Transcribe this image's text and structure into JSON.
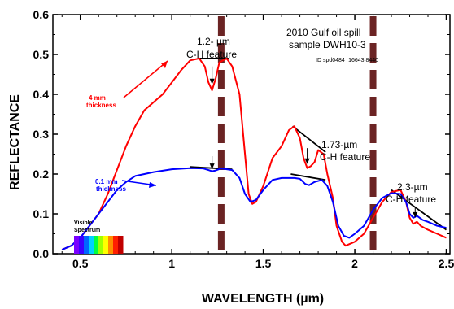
{
  "chart_data": {
    "type": "line",
    "title": "",
    "xlabel": "WAVELENGTH (µm)",
    "ylabel": "REFLECTANCE",
    "xlim": [
      0.35,
      2.52
    ],
    "ylim": [
      0,
      0.6
    ],
    "x_ticks": [
      "0.5",
      "1",
      "1.5",
      "2",
      "2.5"
    ],
    "x_tick_values": [
      0.5,
      1.0,
      1.5,
      2.0,
      2.5
    ],
    "y_ticks": [
      "0.0",
      "0.1",
      "0.2",
      "0.3",
      "0.4",
      "0.5",
      "0.6"
    ],
    "y_tick_values": [
      0.0,
      0.1,
      0.2,
      0.3,
      0.4,
      0.5,
      0.6
    ],
    "grid": false,
    "series": [
      {
        "name": "4 mm thickness",
        "color": "#ff0000",
        "points": [
          [
            0.4,
            0.01
          ],
          [
            0.45,
            0.02
          ],
          [
            0.5,
            0.04
          ],
          [
            0.55,
            0.07
          ],
          [
            0.6,
            0.1
          ],
          [
            0.65,
            0.15
          ],
          [
            0.7,
            0.21
          ],
          [
            0.75,
            0.27
          ],
          [
            0.8,
            0.32
          ],
          [
            0.85,
            0.36
          ],
          [
            0.9,
            0.38
          ],
          [
            0.95,
            0.4
          ],
          [
            1.0,
            0.43
          ],
          [
            1.05,
            0.46
          ],
          [
            1.1,
            0.485
          ],
          [
            1.15,
            0.49
          ],
          [
            1.18,
            0.47
          ],
          [
            1.2,
            0.43
          ],
          [
            1.21,
            0.42
          ],
          [
            1.22,
            0.41
          ],
          [
            1.24,
            0.44
          ],
          [
            1.26,
            0.48
          ],
          [
            1.3,
            0.49
          ],
          [
            1.33,
            0.47
          ],
          [
            1.37,
            0.4
          ],
          [
            1.4,
            0.25
          ],
          [
            1.42,
            0.15
          ],
          [
            1.44,
            0.125
          ],
          [
            1.46,
            0.13
          ],
          [
            1.5,
            0.17
          ],
          [
            1.55,
            0.24
          ],
          [
            1.6,
            0.27
          ],
          [
            1.64,
            0.31
          ],
          [
            1.67,
            0.32
          ],
          [
            1.7,
            0.29
          ],
          [
            1.72,
            0.24
          ],
          [
            1.74,
            0.215
          ],
          [
            1.76,
            0.22
          ],
          [
            1.78,
            0.23
          ],
          [
            1.8,
            0.26
          ],
          [
            1.83,
            0.25
          ],
          [
            1.85,
            0.2
          ],
          [
            1.88,
            0.14
          ],
          [
            1.9,
            0.07
          ],
          [
            1.93,
            0.03
          ],
          [
            1.95,
            0.02
          ],
          [
            2.0,
            0.03
          ],
          [
            2.05,
            0.05
          ],
          [
            2.1,
            0.09
          ],
          [
            2.15,
            0.13
          ],
          [
            2.2,
            0.155
          ],
          [
            2.25,
            0.16
          ],
          [
            2.28,
            0.13
          ],
          [
            2.3,
            0.09
          ],
          [
            2.32,
            0.075
          ],
          [
            2.34,
            0.08
          ],
          [
            2.36,
            0.07
          ],
          [
            2.4,
            0.06
          ],
          [
            2.45,
            0.05
          ],
          [
            2.5,
            0.04
          ]
        ]
      },
      {
        "name": "0.1 mm thickness",
        "color": "#0000ff",
        "points": [
          [
            0.4,
            0.01
          ],
          [
            0.45,
            0.02
          ],
          [
            0.5,
            0.04
          ],
          [
            0.55,
            0.07
          ],
          [
            0.6,
            0.1
          ],
          [
            0.65,
            0.13
          ],
          [
            0.7,
            0.16
          ],
          [
            0.75,
            0.18
          ],
          [
            0.8,
            0.195
          ],
          [
            0.9,
            0.205
          ],
          [
            1.0,
            0.212
          ],
          [
            1.1,
            0.215
          ],
          [
            1.17,
            0.214
          ],
          [
            1.2,
            0.21
          ],
          [
            1.22,
            0.207
          ],
          [
            1.24,
            0.209
          ],
          [
            1.27,
            0.214
          ],
          [
            1.33,
            0.21
          ],
          [
            1.37,
            0.19
          ],
          [
            1.4,
            0.15
          ],
          [
            1.43,
            0.13
          ],
          [
            1.46,
            0.135
          ],
          [
            1.5,
            0.16
          ],
          [
            1.55,
            0.185
          ],
          [
            1.6,
            0.19
          ],
          [
            1.67,
            0.19
          ],
          [
            1.7,
            0.188
          ],
          [
            1.73,
            0.175
          ],
          [
            1.75,
            0.172
          ],
          [
            1.78,
            0.18
          ],
          [
            1.82,
            0.185
          ],
          [
            1.85,
            0.17
          ],
          [
            1.88,
            0.13
          ],
          [
            1.91,
            0.07
          ],
          [
            1.94,
            0.045
          ],
          [
            1.97,
            0.04
          ],
          [
            2.0,
            0.05
          ],
          [
            2.05,
            0.07
          ],
          [
            2.1,
            0.11
          ],
          [
            2.15,
            0.14
          ],
          [
            2.2,
            0.152
          ],
          [
            2.25,
            0.15
          ],
          [
            2.28,
            0.13
          ],
          [
            2.3,
            0.1
          ],
          [
            2.32,
            0.09
          ],
          [
            2.34,
            0.095
          ],
          [
            2.37,
            0.085
          ],
          [
            2.4,
            0.08
          ],
          [
            2.45,
            0.07
          ],
          [
            2.5,
            0.065
          ]
        ]
      }
    ],
    "continuum_lines": [
      {
        "points": [
          [
            1.14,
            0.49
          ],
          [
            1.31,
            0.49
          ]
        ]
      },
      {
        "points": [
          [
            1.1,
            0.218
          ],
          [
            1.33,
            0.212
          ]
        ]
      },
      {
        "points": [
          [
            1.66,
            0.32
          ],
          [
            1.84,
            0.255
          ]
        ]
      },
      {
        "points": [
          [
            1.65,
            0.2
          ],
          [
            1.84,
            0.185
          ]
        ]
      },
      {
        "points": [
          [
            2.2,
            0.16
          ],
          [
            2.5,
            0.06
          ]
        ]
      }
    ],
    "vertical_markers": [
      {
        "x": 1.27,
        "color": "#6b2424"
      },
      {
        "x": 2.1,
        "color": "#6b2424"
      }
    ],
    "feature_arrows": [
      {
        "x": 1.22,
        "y_from": 0.47,
        "y_to": 0.425
      },
      {
        "x": 1.22,
        "y_from": 0.245,
        "y_to": 0.212
      },
      {
        "x": 1.74,
        "y_from": 0.265,
        "y_to": 0.225
      },
      {
        "x": 2.33,
        "y_from": 0.118,
        "y_to": 0.09
      }
    ],
    "annotations": {
      "sample_line1": "2010 Gulf oil spill",
      "sample_line2": "sample DWH10-3",
      "sample_id": "ID spd0484 r16643 8440",
      "feature_12_line1": "1.2- µm",
      "feature_12_line2": "C-H feature",
      "feature_173_line1": "1.73-µm",
      "feature_173_line2": "C-H feature",
      "feature_23_line1": "2.3-µm",
      "feature_23_line2": "C-H feature",
      "red_label_line1": "4 mm",
      "red_label_line2": "thickness",
      "blue_label_line1": "0.1 mm",
      "blue_label_line2": "thickness",
      "visible_line1": "Visible",
      "visible_line2": "Spectrum"
    },
    "spectrum_colors": [
      "#7a00ff",
      "#3b00ff",
      "#0066ff",
      "#00d0ff",
      "#00ff40",
      "#a0ff00",
      "#ffff00",
      "#ff9000",
      "#ff2000",
      "#c00000"
    ]
  }
}
